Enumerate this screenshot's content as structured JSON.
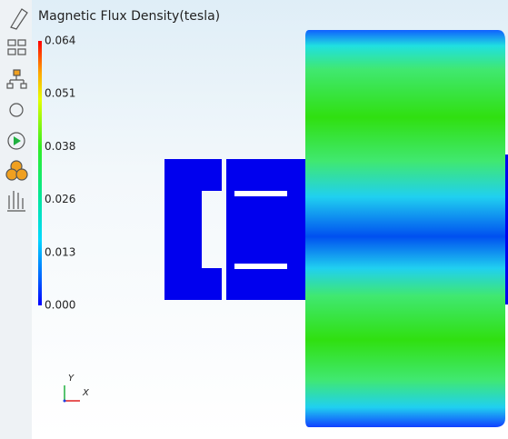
{
  "legend": {
    "title": "Magnetic Flux Density(tesla)",
    "labels": [
      "0.064",
      "0.051",
      "0.038",
      "0.026",
      "0.013",
      "0.000"
    ]
  },
  "axes": {
    "y": "Y",
    "x": "X"
  }
}
